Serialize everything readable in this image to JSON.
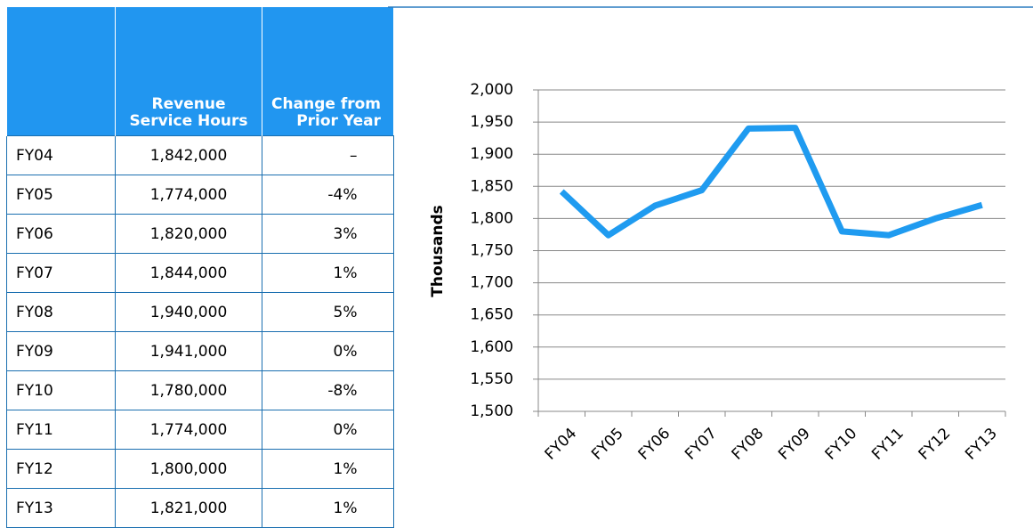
{
  "table": {
    "columns": [
      "Revenue Service Hours",
      "Change from Prior Year"
    ],
    "rows": [
      [
        "FY04",
        "1,842,000",
        "–"
      ],
      [
        "FY05",
        "1,774,000",
        "-4%"
      ],
      [
        "FY06",
        "1,820,000",
        "3%"
      ],
      [
        "FY07",
        "1,844,000",
        "1%"
      ],
      [
        "FY08",
        "1,940,000",
        "5%"
      ],
      [
        "FY09",
        "1,941,000",
        "0%"
      ],
      [
        "FY10",
        "1,780,000",
        "-8%"
      ],
      [
        "FY11",
        "1,774,000",
        "0%"
      ],
      [
        "FY12",
        "1,800,000",
        "1%"
      ],
      [
        "FY13",
        "1,821,000",
        "1%"
      ]
    ]
  },
  "chart_data": {
    "type": "line",
    "ylabel": "Thousands",
    "categories": [
      "FY04",
      "FY05",
      "FY06",
      "FY07",
      "FY08",
      "FY09",
      "FY10",
      "FY11",
      "FY12",
      "FY13"
    ],
    "values": [
      1842,
      1774,
      1820,
      1844,
      1940,
      1941,
      1780,
      1774,
      1800,
      1821
    ],
    "color": "#1f9bf0",
    "ylim": [
      1500,
      2000
    ],
    "yticks": [
      {
        "value": 1500,
        "label": "1,500"
      },
      {
        "value": 1550,
        "label": "1,550"
      },
      {
        "value": 1600,
        "label": "1,600"
      },
      {
        "value": 1650,
        "label": "1,650"
      },
      {
        "value": 1700,
        "label": "1,700"
      },
      {
        "value": 1750,
        "label": "1,750"
      },
      {
        "value": 1800,
        "label": "1,800"
      },
      {
        "value": 1850,
        "label": "1,850"
      },
      {
        "value": 1900,
        "label": "1,900"
      },
      {
        "value": 1950,
        "label": "1,950"
      },
      {
        "value": 2000,
        "label": "2,000"
      }
    ],
    "grid": true
  }
}
